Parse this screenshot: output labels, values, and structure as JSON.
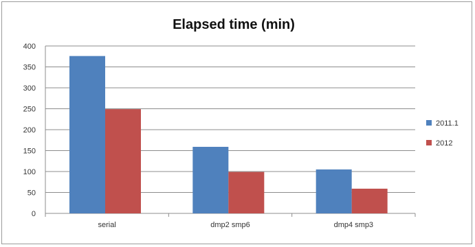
{
  "chart_data": {
    "type": "bar",
    "title": "Elapsed time (min)",
    "xlabel": "",
    "ylabel": "",
    "categories": [
      "serial",
      "dmp2 smp6",
      "dmp4 smp3"
    ],
    "series": [
      {
        "name": "2011.1",
        "values": [
          376,
          159,
          105
        ],
        "color": "#4f81bd"
      },
      {
        "name": "2012",
        "values": [
          249,
          99,
          59
        ],
        "color": "#c0504d"
      }
    ],
    "ylim": [
      0,
      400
    ],
    "yticks": [
      0,
      50,
      100,
      150,
      200,
      250,
      300,
      350,
      400
    ],
    "grid": true,
    "legend": "right"
  }
}
